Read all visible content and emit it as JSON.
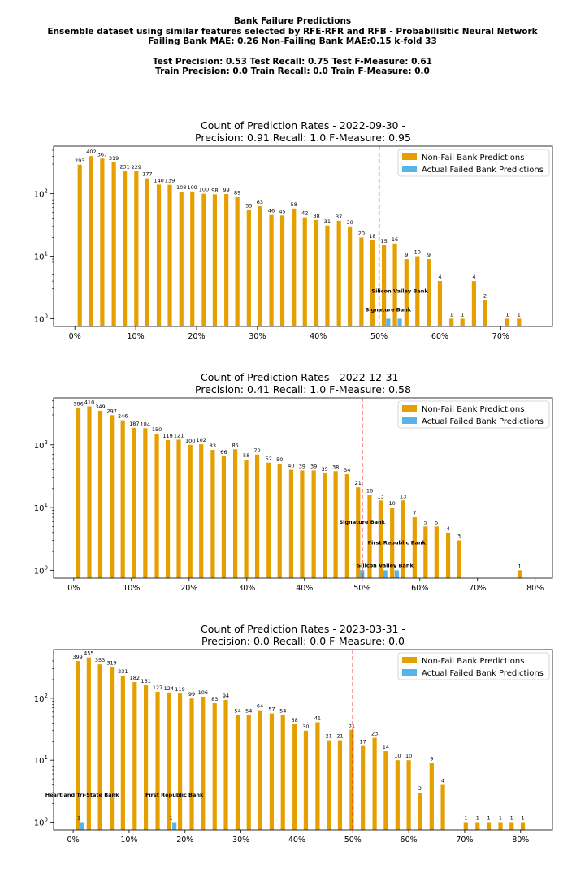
{
  "header": {
    "line1": "Bank Failure Predictions",
    "line2": "Ensemble dataset using similar features selected by RFE-RFR and RFB - Probabilisitic Neural Network",
    "line3": "Failing Bank MAE: 0.26 Non-Failing Bank MAE:0.15 k-fold 33",
    "line4": "Test Precision: 0.53 Test Recall: 0.75 Test F-Measure: 0.61",
    "line5": "Train Precision: 0.0 Train Recall: 0.0 Train F-Measure: 0.0"
  },
  "colors": {
    "nonfail": "#e69f00",
    "failed": "#56b4e9",
    "threshold": "#ff0000"
  },
  "chart_data": [
    {
      "type": "bar",
      "title_line1": "Count of Prediction Rates - 2022-09-30 -",
      "title_line2": "Precision: 0.91   Recall: 1.0   F-Measure: 0.95",
      "yscale": "log",
      "ylim": [
        0.75,
        580
      ],
      "xlim": [
        -3.5,
        78.5
      ],
      "yticks": [
        "10^0",
        "10^1",
        "10^2"
      ],
      "xticks": [
        0,
        10,
        20,
        30,
        40,
        50,
        60,
        70
      ],
      "xtick_labels": [
        "0%",
        "10%",
        "20%",
        "30%",
        "40%",
        "50%",
        "60%",
        "70%"
      ],
      "threshold": 50,
      "legend": [
        "Non-Fail Bank Predictions",
        "Actual Failed Bank Predictions"
      ],
      "legend_position": "upper right",
      "nonfail": {
        "x": [
          0.8,
          2.7,
          4.5,
          6.4,
          8.2,
          10.1,
          11.9,
          13.8,
          15.6,
          17.5,
          19.3,
          21.2,
          23.0,
          24.9,
          26.7,
          28.6,
          30.4,
          32.3,
          34.1,
          36.0,
          37.8,
          39.7,
          41.5,
          43.4,
          45.2,
          47.1,
          48.9,
          50.8,
          52.6,
          54.5,
          56.3,
          58.2,
          60.0,
          61.9,
          63.7,
          65.6,
          67.4,
          71.1,
          73.0
        ],
        "values": [
          293,
          402,
          367,
          319,
          231,
          229,
          177,
          140,
          139,
          108,
          109,
          100,
          98,
          99,
          89,
          55,
          63,
          46,
          45,
          58,
          42,
          38,
          31,
          37,
          30,
          20,
          18,
          15,
          16,
          9,
          10,
          9,
          4,
          1,
          1,
          4,
          2,
          1,
          1
        ],
        "labels": [
          "293",
          "402",
          "367",
          "319",
          "231",
          "229",
          "177",
          "140",
          "139",
          "108",
          "109",
          "100",
          "98",
          "99",
          "89",
          "55",
          "63",
          "46",
          "45",
          "58",
          "42",
          "38",
          "31",
          "37",
          "30",
          "20",
          "18",
          "15",
          "16",
          "9",
          "10",
          "9",
          "4",
          "1",
          "1",
          "4",
          "2",
          "1",
          "1"
        ]
      },
      "failed": {
        "x": [
          51.5,
          53.4
        ],
        "values": [
          1,
          1
        ]
      },
      "annotations": [
        {
          "text": "Silicon Valley Bank",
          "x": 53.4,
          "y": 2.6
        },
        {
          "text": "Signature Bank",
          "x": 51.5,
          "y": 1.3
        }
      ]
    },
    {
      "type": "bar",
      "title_line1": "Count of Prediction Rates - 2022-12-31 -",
      "title_line2": "Precision: 0.41   Recall: 1.0   F-Measure: 0.58",
      "yscale": "log",
      "ylim": [
        0.75,
        560
      ],
      "xlim": [
        -3.5,
        83.0
      ],
      "yticks": [
        "10^0",
        "10^1",
        "10^2"
      ],
      "xticks": [
        0,
        10,
        20,
        30,
        40,
        50,
        60,
        70,
        80
      ],
      "xtick_labels": [
        "0%",
        "10%",
        "20%",
        "30%",
        "40%",
        "50%",
        "60%",
        "70%",
        "80%"
      ],
      "threshold": 50,
      "legend": [
        "Non-Fail Bank Predictions",
        "Actual Failed Bank Predictions"
      ],
      "legend_position": "upper right",
      "nonfail": {
        "x": [
          0.8,
          2.7,
          4.6,
          6.6,
          8.5,
          10.5,
          12.4,
          14.4,
          16.3,
          18.2,
          20.2,
          22.1,
          24.1,
          26.0,
          28.0,
          29.9,
          31.8,
          33.8,
          35.7,
          37.7,
          39.6,
          41.6,
          43.5,
          45.4,
          47.4,
          49.3,
          51.3,
          53.2,
          55.2,
          57.1,
          59.1,
          61.0,
          62.9,
          64.9,
          66.8,
          77.3
        ],
        "values": [
          386,
          410,
          349,
          297,
          246,
          187,
          184,
          150,
          119,
          121,
          100,
          102,
          83,
          66,
          85,
          58,
          70,
          52,
          50,
          40,
          39,
          39,
          35,
          38,
          34,
          21,
          16,
          13,
          10,
          13,
          7,
          5,
          5,
          4,
          3,
          1
        ],
        "labels": [
          "386",
          "410",
          "349",
          "297",
          "246",
          "187",
          "184",
          "150",
          "119",
          "121",
          "100",
          "102",
          "83",
          "66",
          "85",
          "58",
          "70",
          "52",
          "50",
          "40",
          "39",
          "39",
          "35",
          "38",
          "34",
          "21",
          "16",
          "13",
          "10",
          "13",
          "7",
          "5",
          "5",
          "4",
          "3",
          "1"
        ]
      },
      "failed": {
        "x": [
          50.0,
          54.0,
          56.0
        ],
        "values": [
          1,
          1,
          1
        ]
      },
      "annotations": [
        {
          "text": "Signature Bank",
          "x": 50.0,
          "y": 5.5
        },
        {
          "text": "First Republic Bank",
          "x": 56.0,
          "y": 2.6
        },
        {
          "text": "Silicon Valley Bank",
          "x": 54.0,
          "y": 1.12
        }
      ]
    },
    {
      "type": "bar",
      "title_line1": "Count of Prediction Rates - 2023-03-31 -",
      "title_line2": "Precision: 0.0   Recall: 0.0   F-Measure: 0.0",
      "yscale": "log",
      "ylim": [
        0.75,
        610
      ],
      "xlim": [
        -3.5,
        85.7
      ],
      "yticks": [
        "10^0",
        "10^1",
        "10^2"
      ],
      "xticks": [
        0,
        10,
        20,
        30,
        40,
        50,
        60,
        70,
        80
      ],
      "xtick_labels": [
        "0%",
        "10%",
        "20%",
        "30%",
        "40%",
        "50%",
        "60%",
        "70%",
        "80%"
      ],
      "threshold": 50,
      "legend": [
        "Non-Fail Bank Predictions",
        "Actual Failed Bank Predictions"
      ],
      "legend_position": "upper right",
      "nonfail": {
        "x": [
          0.8,
          2.8,
          4.8,
          6.9,
          8.9,
          11.0,
          13.0,
          15.1,
          17.1,
          19.1,
          21.2,
          23.2,
          25.3,
          27.3,
          29.4,
          31.4,
          33.4,
          35.5,
          37.5,
          39.6,
          41.6,
          43.7,
          45.7,
          47.7,
          49.8,
          51.8,
          53.9,
          55.9,
          58.0,
          60.0,
          62.0,
          64.1,
          66.1,
          70.2,
          72.3,
          74.3,
          76.4,
          78.4,
          80.4
        ],
        "values": [
          399,
          455,
          353,
          319,
          231,
          182,
          161,
          127,
          124,
          119,
          99,
          106,
          83,
          94,
          54,
          54,
          64,
          57,
          54,
          38,
          30,
          41,
          21,
          21,
          31,
          17,
          23,
          14,
          10,
          10,
          3,
          9,
          4,
          1,
          1,
          1,
          1,
          1,
          1
        ],
        "labels": [
          "399",
          "455",
          "353",
          "319",
          "231",
          "182",
          "161",
          "127",
          "124",
          "119",
          "99",
          "106",
          "83",
          "94",
          "54",
          "54",
          "64",
          "57",
          "54",
          "38",
          "30",
          "41",
          "21",
          "21",
          "31",
          "17",
          "23",
          "14",
          "10",
          "10",
          "3",
          "9",
          "4",
          "1",
          "1",
          "1",
          "1",
          "1",
          "1"
        ]
      },
      "failed": {
        "x": [
          1.6,
          18.1
        ],
        "values": [
          1,
          1
        ],
        "labels": [
          "1",
          "1"
        ]
      },
      "annotations": [
        {
          "text": "Heartland Tri-State Bank",
          "x": 1.6,
          "y": 2.6
        },
        {
          "text": "First Republic Bank",
          "x": 18.1,
          "y": 2.6
        }
      ]
    }
  ]
}
